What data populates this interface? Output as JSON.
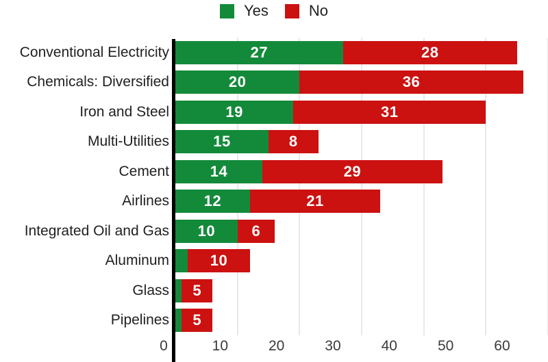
{
  "legend": {
    "items": [
      {
        "label": "Yes",
        "color": "#138a3a"
      },
      {
        "label": "No",
        "color": "#cc1111"
      }
    ]
  },
  "chart_data": {
    "type": "bar",
    "orientation": "horizontal",
    "stacked": true,
    "title": "",
    "xlabel": "",
    "ylabel": "",
    "categories": [
      "Conventional Electricity",
      "Chemicals: Diversified",
      "Iron and Steel",
      "Multi-Utilities",
      "Cement",
      "Airlines",
      "Integrated Oil and Gas",
      "Aluminum",
      "Glass",
      "Pipelines"
    ],
    "series": [
      {
        "name": "Yes",
        "color": "#138a3a",
        "values": [
          27,
          20,
          19,
          15,
          14,
          12,
          10,
          2,
          1,
          1
        ]
      },
      {
        "name": "No",
        "color": "#cc1111",
        "values": [
          28,
          36,
          31,
          8,
          29,
          21,
          6,
          10,
          5,
          5
        ]
      }
    ],
    "xlim": [
      0,
      60
    ],
    "xticks": [
      0,
      10,
      20,
      30,
      40,
      50,
      60
    ],
    "grid": "vertical",
    "legend_position": "top",
    "value_labels": "inside-center-white, hidden for segments smaller than 5",
    "label_min_value": 5
  }
}
